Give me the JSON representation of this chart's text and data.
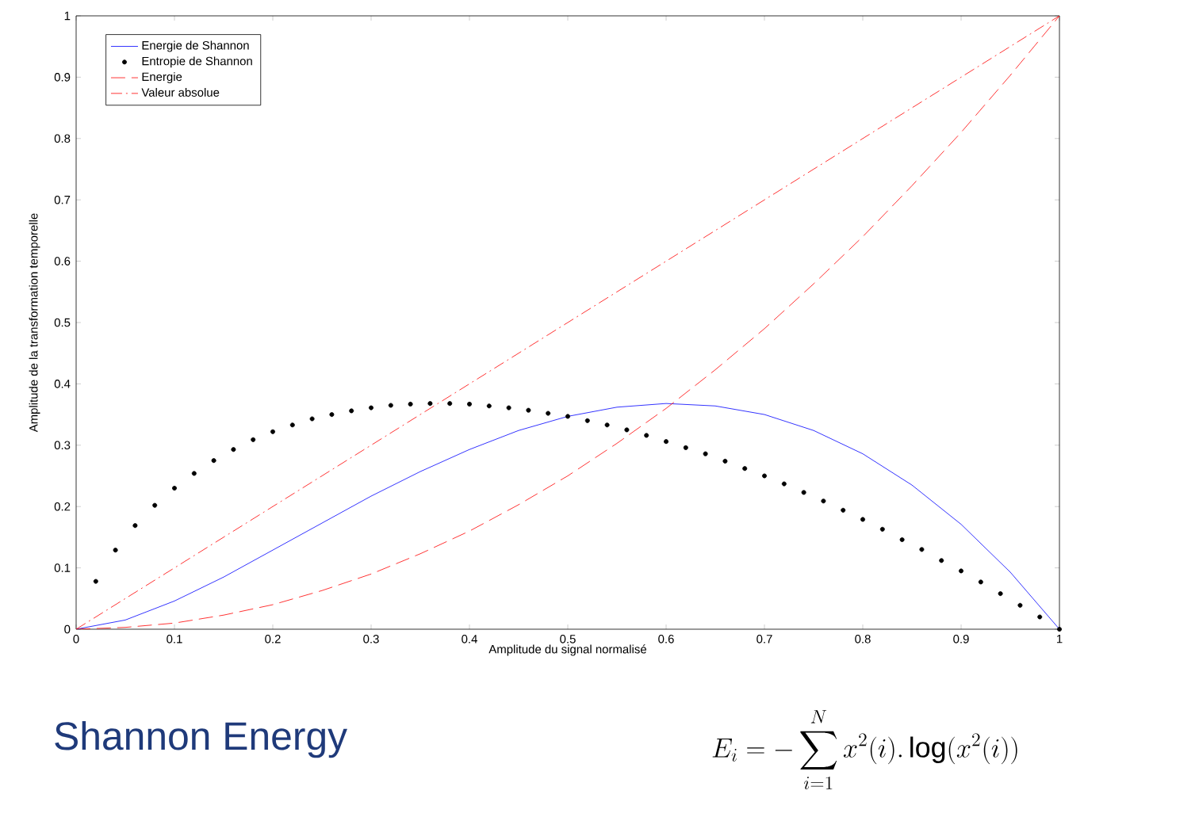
{
  "chart_data": {
    "type": "line",
    "xlabel": "Amplitude du signal normalisé",
    "ylabel": "Amplitude de la transformation temporelle",
    "xlim": [
      0,
      1
    ],
    "ylim": [
      0,
      1
    ],
    "xticks": [
      0,
      0.1,
      0.2,
      0.3,
      0.4,
      0.5,
      0.6,
      0.7,
      0.8,
      0.9,
      1
    ],
    "yticks": [
      0,
      0.1,
      0.2,
      0.3,
      0.4,
      0.5,
      0.6,
      0.7,
      0.8,
      0.9,
      1
    ],
    "grid": false,
    "legend": "top left",
    "series": [
      {
        "name": "Energie de Shannon",
        "color": "#0000ff",
        "line_style": "solid",
        "x": [
          0,
          0.05,
          0.1,
          0.15,
          0.2,
          0.25,
          0.3,
          0.35,
          0.4,
          0.45,
          0.5,
          0.55,
          0.6,
          0.65,
          0.7,
          0.75,
          0.8,
          0.85,
          0.9,
          0.95,
          1
        ],
        "values": [
          0,
          0.015,
          0.046,
          0.085,
          0.129,
          0.173,
          0.217,
          0.257,
          0.293,
          0.324,
          0.347,
          0.362,
          0.368,
          0.364,
          0.35,
          0.324,
          0.286,
          0.235,
          0.171,
          0.093,
          0
        ]
      },
      {
        "name": "Entropie de Shannon",
        "type": "scatter",
        "color": "#000000",
        "marker": "circle",
        "x": [
          0.02,
          0.04,
          0.06,
          0.08,
          0.1,
          0.12,
          0.14,
          0.16,
          0.18,
          0.2,
          0.22,
          0.24,
          0.26,
          0.28,
          0.3,
          0.32,
          0.34,
          0.36,
          0.38,
          0.4,
          0.42,
          0.44,
          0.46,
          0.48,
          0.5,
          0.52,
          0.54,
          0.56,
          0.58,
          0.6,
          0.62,
          0.64,
          0.66,
          0.68,
          0.7,
          0.72,
          0.74,
          0.76,
          0.78,
          0.8,
          0.82,
          0.84,
          0.86,
          0.88,
          0.9,
          0.92,
          0.94,
          0.96,
          0.98,
          1
        ],
        "values": [
          0.078,
          0.129,
          0.169,
          0.202,
          0.23,
          0.254,
          0.275,
          0.293,
          0.309,
          0.322,
          0.333,
          0.343,
          0.35,
          0.356,
          0.361,
          0.365,
          0.367,
          0.368,
          0.368,
          0.367,
          0.364,
          0.361,
          0.357,
          0.352,
          0.347,
          0.34,
          0.333,
          0.325,
          0.316,
          0.306,
          0.296,
          0.286,
          0.274,
          0.262,
          0.25,
          0.237,
          0.223,
          0.209,
          0.194,
          0.179,
          0.163,
          0.146,
          0.13,
          0.112,
          0.095,
          0.077,
          0.058,
          0.039,
          0.02,
          0
        ]
      },
      {
        "name": "Energie",
        "color": "#ff0000",
        "line_style": "dashed",
        "x": [
          0,
          0.05,
          0.1,
          0.15,
          0.2,
          0.25,
          0.3,
          0.35,
          0.4,
          0.45,
          0.5,
          0.55,
          0.6,
          0.65,
          0.7,
          0.75,
          0.8,
          0.85,
          0.9,
          0.95,
          1
        ],
        "values": [
          0,
          0.003,
          0.01,
          0.023,
          0.04,
          0.063,
          0.09,
          0.123,
          0.16,
          0.203,
          0.25,
          0.303,
          0.36,
          0.423,
          0.49,
          0.563,
          0.64,
          0.723,
          0.81,
          0.903,
          1
        ]
      },
      {
        "name": "Valeur absolue",
        "color": "#ff0000",
        "line_style": "dashdot",
        "x": [
          0,
          1
        ],
        "values": [
          0,
          1
        ]
      }
    ],
    "annotations": [
      "Shannon Energy",
      "E_{i}=-\\sum_{i=1}^{N} x^{2}(i).\\log( x^{2}(i))"
    ]
  }
}
